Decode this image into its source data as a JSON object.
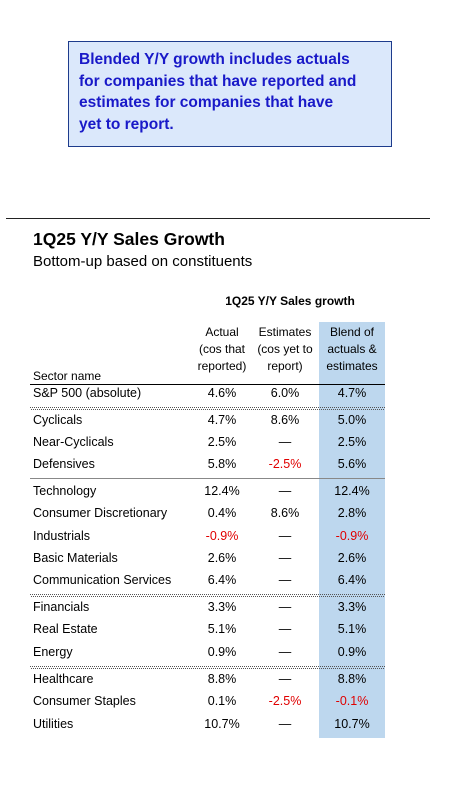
{
  "note": {
    "lines": [
      "Blended Y/Y growth includes actuals",
      "for companies that have reported and",
      "estimates for companies that have",
      "yet to report."
    ]
  },
  "table": {
    "title": "1Q25 Y/Y Sales Growth",
    "subtitle": "Bottom-up based on constituents",
    "group_header": "1Q25 Y/Y Sales growth",
    "columns": {
      "name": "Sector name",
      "actual": [
        "Actual",
        "(cos that",
        "reported)"
      ],
      "estimates": [
        "Estimates",
        "(cos yet to",
        "report)"
      ],
      "blend": [
        "Blend of",
        "actuals &",
        "estimates"
      ]
    },
    "rows": [
      {
        "name": "S&P 500 (absolute)",
        "actual": "4.6%",
        "estimates": "6.0%",
        "blend": "4.7%"
      },
      {
        "name": "Cyclicals",
        "actual": "4.7%",
        "estimates": "8.6%",
        "blend": "5.0%"
      },
      {
        "name": "Near-Cyclicals",
        "actual": "2.5%",
        "estimates": "—",
        "blend": "2.5%"
      },
      {
        "name": "Defensives",
        "actual": "5.8%",
        "estimates": "-2.5%",
        "blend": "5.6%"
      },
      {
        "name": "Technology",
        "actual": "12.4%",
        "estimates": "—",
        "blend": "12.4%"
      },
      {
        "name": "Consumer Discretionary",
        "actual": "0.4%",
        "estimates": "8.6%",
        "blend": "2.8%"
      },
      {
        "name": "Industrials",
        "actual": "-0.9%",
        "estimates": "—",
        "blend": "-0.9%"
      },
      {
        "name": "Basic Materials",
        "actual": "2.6%",
        "estimates": "—",
        "blend": "2.6%"
      },
      {
        "name": "Communication Services",
        "actual": "6.4%",
        "estimates": "—",
        "blend": "6.4%"
      },
      {
        "name": "Financials",
        "actual": "3.3%",
        "estimates": "—",
        "blend": "3.3%"
      },
      {
        "name": "Real Estate",
        "actual": "5.1%",
        "estimates": "—",
        "blend": "5.1%"
      },
      {
        "name": "Energy",
        "actual": "0.9%",
        "estimates": "—",
        "blend": "0.9%"
      },
      {
        "name": "Healthcare",
        "actual": "8.8%",
        "estimates": "—",
        "blend": "8.8%"
      },
      {
        "name": "Consumer Staples",
        "actual": "0.1%",
        "estimates": "-2.5%",
        "blend": "-0.1%"
      },
      {
        "name": "Utilities",
        "actual": "10.7%",
        "estimates": "—",
        "blend": "10.7%"
      }
    ]
  },
  "colors": {
    "note_text": "#1919c8",
    "note_bg": "#dbe8fb",
    "blend_column_bg": "#bdd7ee",
    "negative": "#e00000"
  }
}
